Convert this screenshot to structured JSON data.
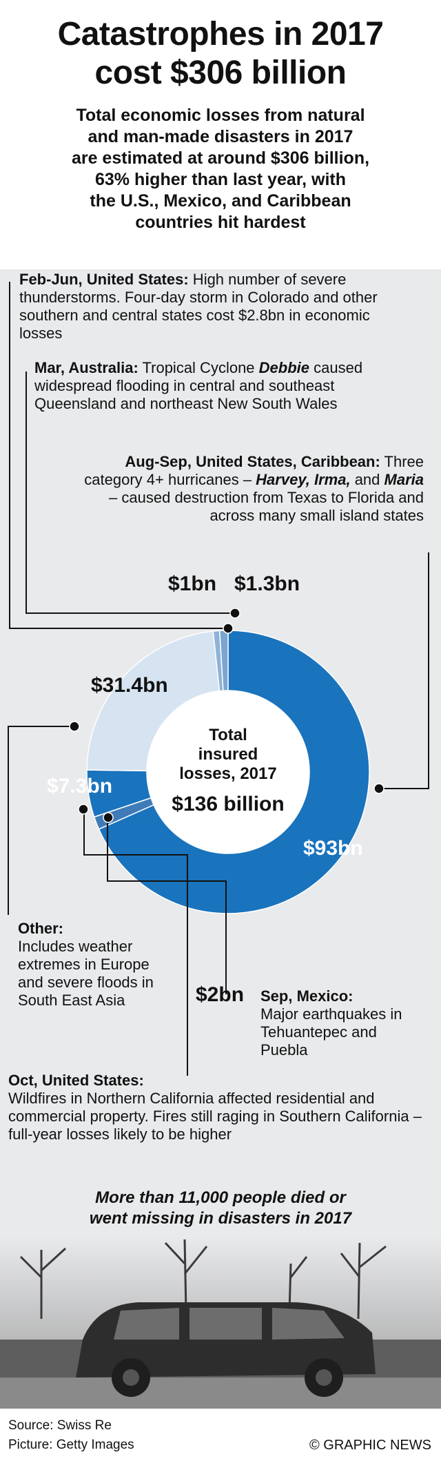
{
  "title": "Catastrophes in 2017\ncost $306 billion",
  "subtitle": "Total economic losses from natural\nand man-made disasters in 2017\nare estimated at around $306 billion,\n63% higher than last year, with\nthe U.S., Mexico, and Caribbean\ncountries hit hardest",
  "annotations": {
    "feb_jun": {
      "head": "Feb-Jun, United States:",
      "text": " High number of severe thunderstorms. Four-day storm in Colorado and other southern and central states cost $2.8bn in economic losses"
    },
    "mar_aus": {
      "head": "Mar, Australia:",
      "text1": " Tropical Cyclone ",
      "name": "Debbie",
      "text2": " caused widespread flooding in central and southeast Queensland and northeast New South Wales"
    },
    "aug_sep": {
      "head": "Aug-Sep, United States, Caribbean:",
      "text1": " Three category 4+ hurricanes – ",
      "name1": "Harvey,",
      "name2": "Irma,",
      "text2": " and ",
      "name3": "Maria",
      "text3": " – caused destruction from Texas to Florida and across many small island states"
    },
    "other": {
      "head": "Other:",
      "text": "Includes weather extremes in Europe and severe floods in South East Asia"
    },
    "sep_mex": {
      "head": "Sep, Mexico:",
      "text": "Major earthquakes in Tehuantepec and Puebla"
    },
    "oct_us": {
      "head": "Oct, United States:",
      "text": "Wildfires in Northern California affected residential and commercial property. Fires still raging in Southern California – full-year losses likely to be higher"
    }
  },
  "chart_data": {
    "type": "pie",
    "center_label": "Total\ninsured\nlosses, 2017",
    "center_value": "$136 billion",
    "slices": [
      {
        "label": "$93bn",
        "value": 93,
        "color": "#1a73bd"
      },
      {
        "label": "$2bn",
        "value": 2,
        "color": "#3f7bb8"
      },
      {
        "label": "$7.3bn",
        "value": 7.3,
        "color": "#1a73bd"
      },
      {
        "label": "$31.4bn",
        "value": 31.4,
        "color": "#d6e3f1"
      },
      {
        "label": "$1bn",
        "value": 1,
        "color": "#8fb3d8"
      },
      {
        "label": "$1.3bn",
        "value": 1.3,
        "color": "#7aa6d2"
      }
    ]
  },
  "bottom_note": "More than 11,000 people died or\nwent missing in disasters in 2017",
  "footer": {
    "source": "Source: Swiss Re",
    "picture": "Picture: Getty Images",
    "copyright": "© GRAPHIC NEWS"
  }
}
